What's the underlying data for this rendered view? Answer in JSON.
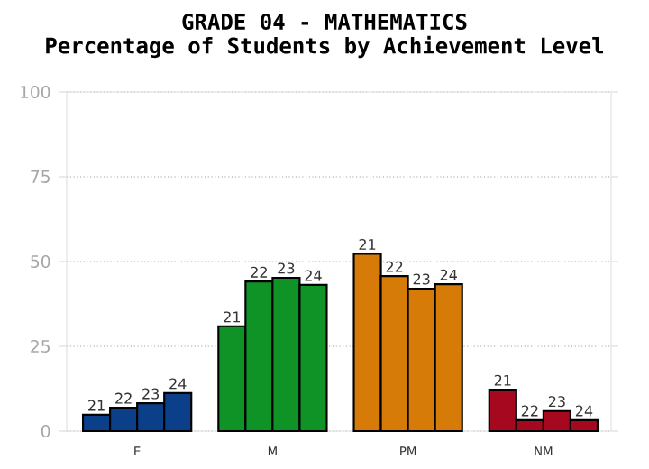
{
  "chart_data": {
    "type": "bar",
    "title": "GRADE 04 - MATHEMATICS",
    "subtitle": "Percentage of Students by Achievement Level",
    "categories": [
      "E",
      "M",
      "PM",
      "NM"
    ],
    "series": [
      {
        "name": "21",
        "colors": [
          "#0b3f8a",
          "#0f9326",
          "#d67b08",
          "#a60820"
        ],
        "values": [
          4.8,
          30.9,
          52.3,
          12.2
        ]
      },
      {
        "name": "22",
        "colors": [
          "#0b3f8a",
          "#0f9326",
          "#d67b08",
          "#a60820"
        ],
        "values": [
          6.9,
          44.1,
          45.7,
          3.2
        ]
      },
      {
        "name": "23",
        "colors": [
          "#0b3f8a",
          "#0f9326",
          "#d67b08",
          "#a60820"
        ],
        "values": [
          8.2,
          45.2,
          42.0,
          5.9
        ]
      },
      {
        "name": "24",
        "colors": [
          "#0b3f8a",
          "#0f9326",
          "#d67b08",
          "#a60820"
        ],
        "values": [
          11.2,
          43.1,
          43.3,
          3.2
        ]
      }
    ],
    "ylim": [
      0,
      100
    ],
    "yticks": [
      0,
      25,
      50,
      75,
      100
    ],
    "grid": "y"
  }
}
